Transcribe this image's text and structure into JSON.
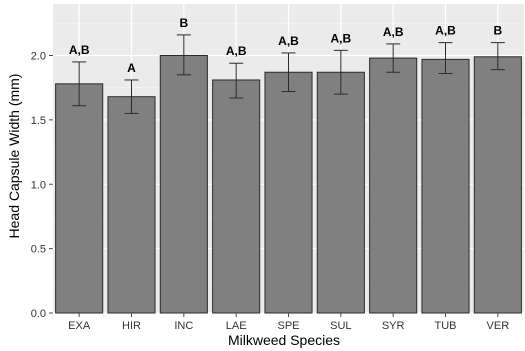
{
  "chart_data": {
    "type": "bar",
    "xlabel": "Milkweed Species",
    "ylabel": "Head Capsule Width (mm)",
    "categories": [
      "EXA",
      "HIR",
      "INC",
      "LAE",
      "SPE",
      "SUL",
      "SYR",
      "TUB",
      "VER"
    ],
    "values": [
      1.78,
      1.68,
      2.0,
      1.81,
      1.87,
      1.87,
      1.98,
      1.97,
      1.99
    ],
    "error_low": [
      1.61,
      1.55,
      1.85,
      1.67,
      1.72,
      1.7,
      1.87,
      1.86,
      1.89
    ],
    "error_high": [
      1.95,
      1.81,
      2.16,
      1.94,
      2.02,
      2.04,
      2.09,
      2.1,
      2.1
    ],
    "significance_labels": [
      "A,B",
      "A",
      "B",
      "A,B",
      "A,B",
      "A,B",
      "A,B",
      "A,B",
      "B"
    ],
    "ylim": [
      0,
      2.4
    ],
    "yticks": [
      "0.0",
      "0.5",
      "1.0",
      "1.5",
      "2.0"
    ],
    "grid": true,
    "colors": {
      "panel_background": "#ebebeb",
      "gridline": "#ffffff",
      "bar_fill": "#808080",
      "bar_stroke": "#2b2b2b",
      "error_bar": "#2b2b2b"
    }
  }
}
